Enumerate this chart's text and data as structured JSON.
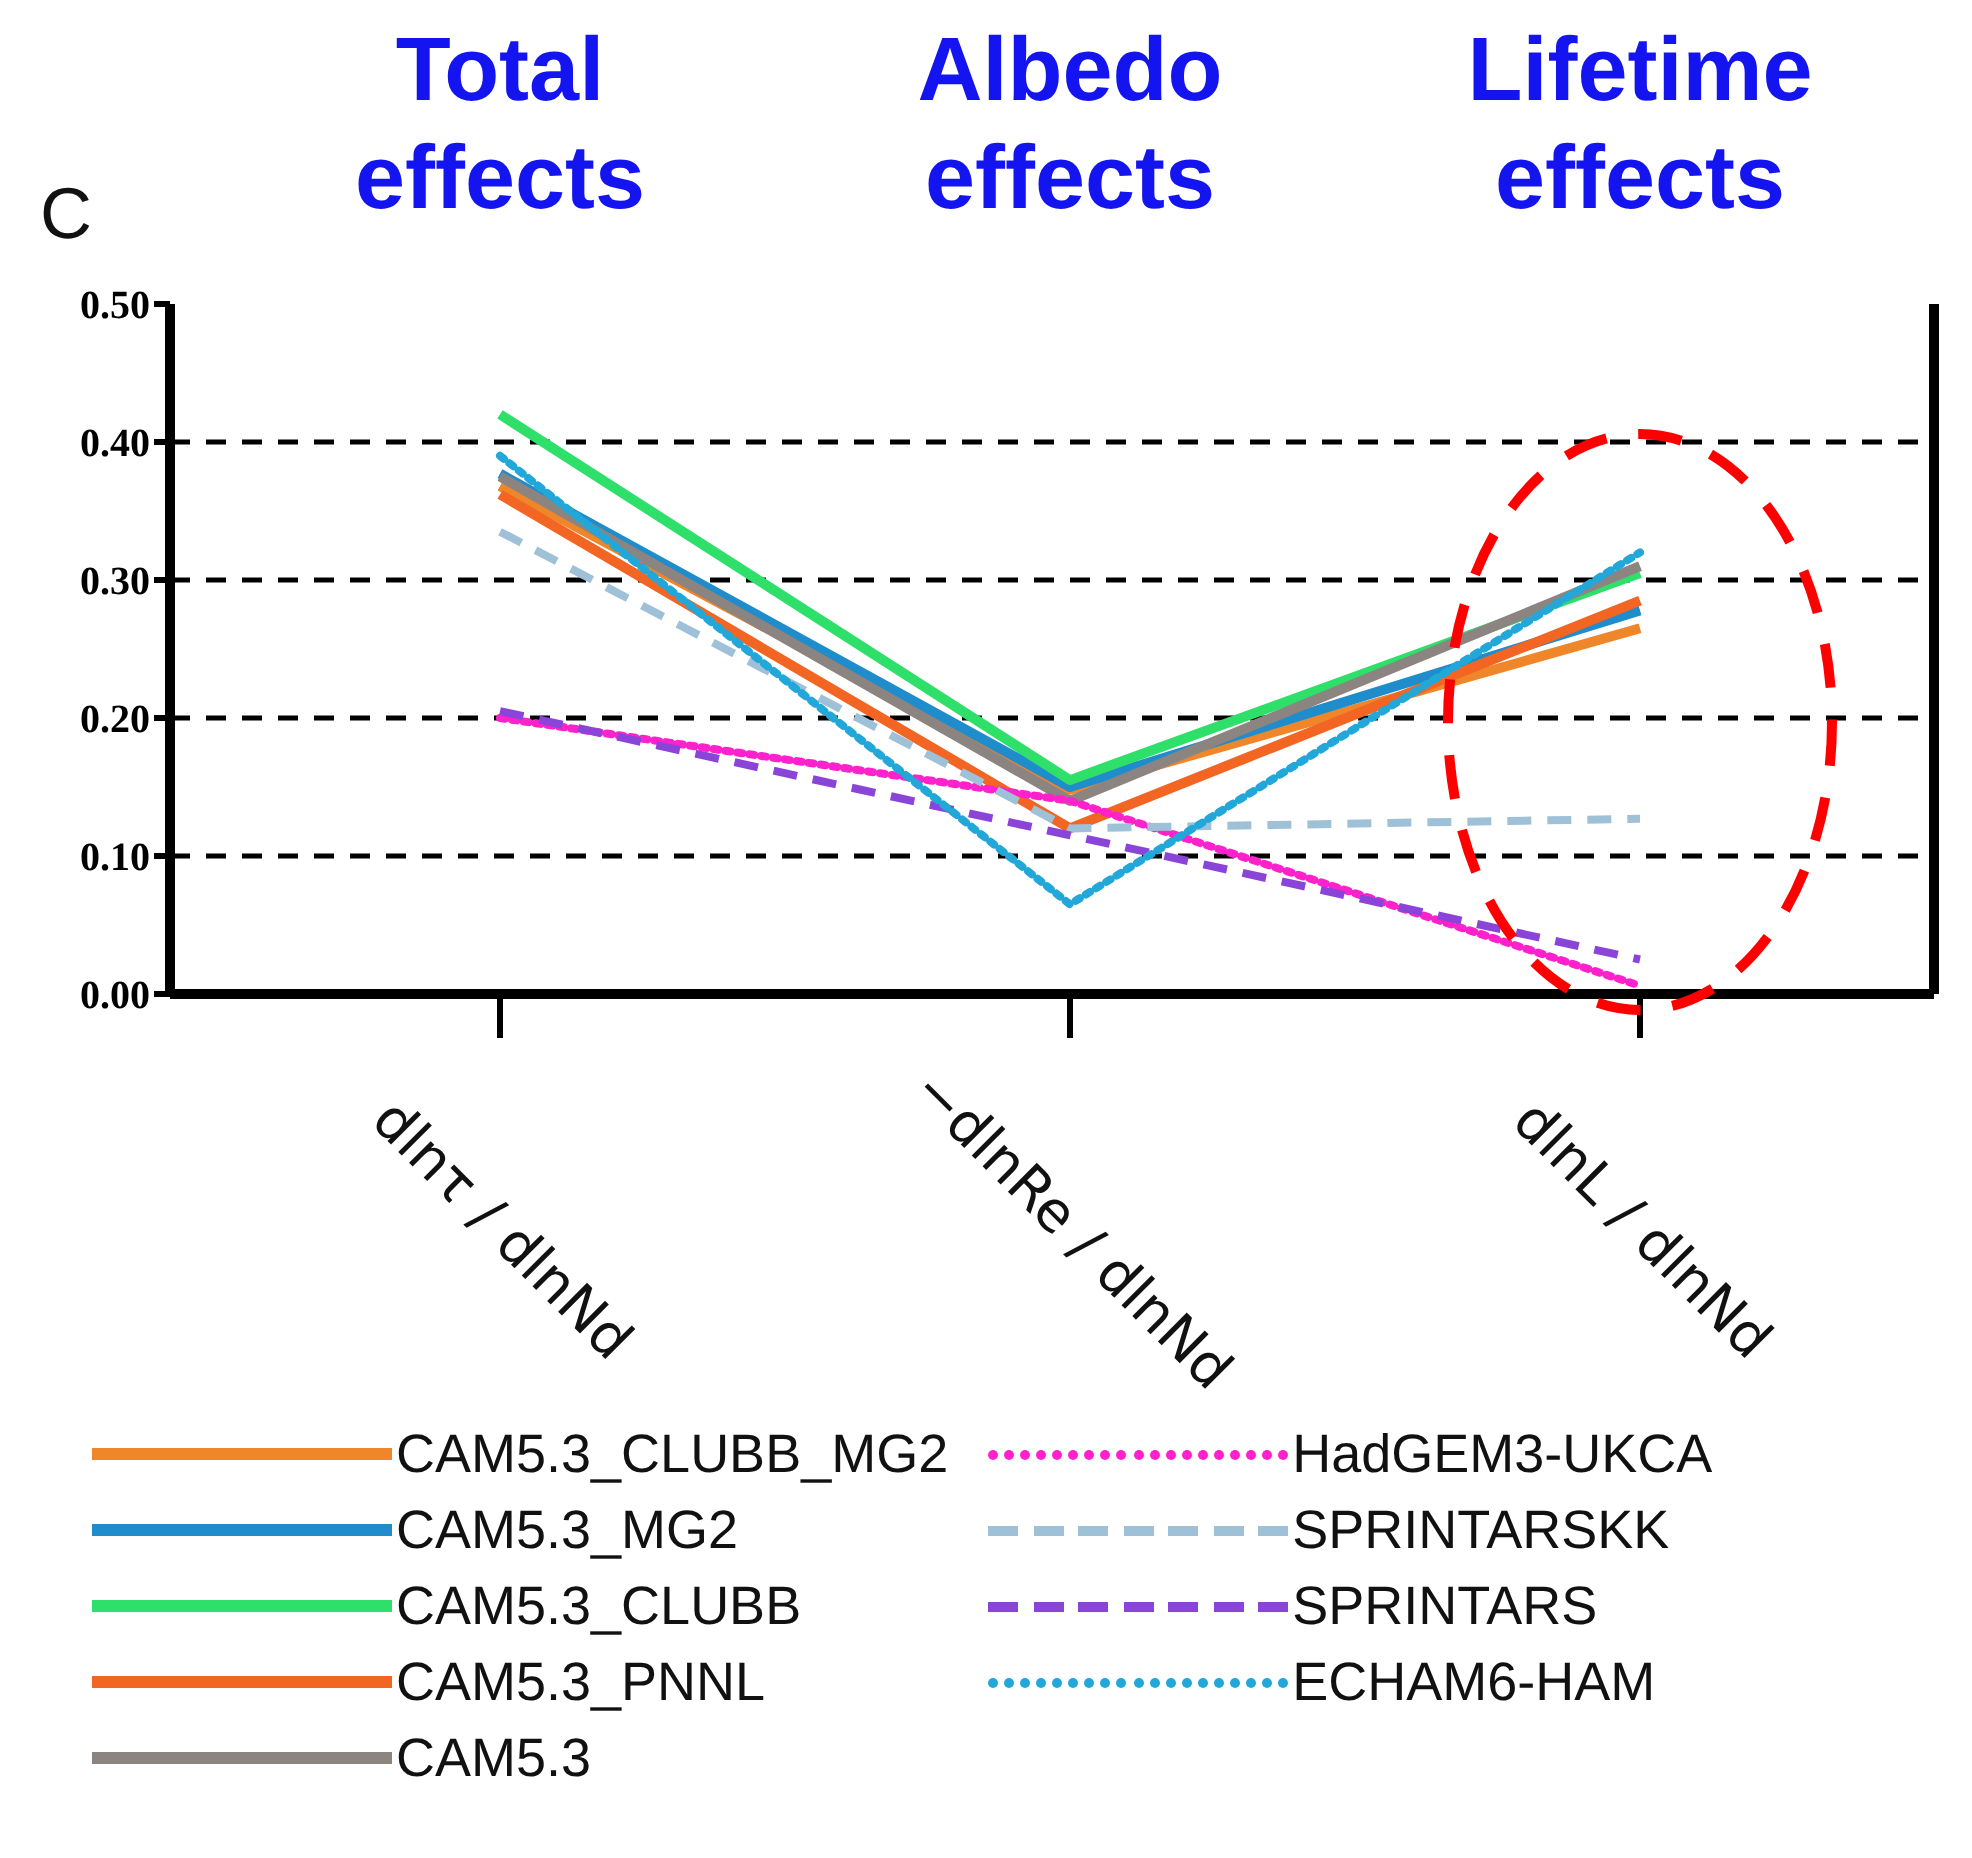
{
  "chart_data": {
    "type": "line",
    "title": "C",
    "annotations": [
      "Total effects",
      "Albedo effects",
      "Lifetime effects"
    ],
    "categories": [
      "dlnτ / dlnNd",
      "−dlnRe / dlnNd",
      "dlnL / dlnNd"
    ],
    "series": [
      {
        "name": "CAM5.3_CLUBB_MG2",
        "color": "#f0862a",
        "line_style": "solid",
        "values": [
          0.368,
          0.148,
          0.265
        ]
      },
      {
        "name": "CAM5.3_MG2",
        "color": "#1f8ccc",
        "line_style": "solid",
        "values": [
          0.377,
          0.15,
          0.278
        ]
      },
      {
        "name": "CAM5.3_CLUBB",
        "color": "#2ee06a",
        "line_style": "solid",
        "values": [
          0.42,
          0.155,
          0.305
        ]
      },
      {
        "name": "CAM5.3_PNNL",
        "color": "#f26522",
        "line_style": "solid",
        "values": [
          0.362,
          0.12,
          0.285
        ]
      },
      {
        "name": "CAM5.3",
        "color": "#8c8480",
        "line_style": "solid",
        "values": [
          0.375,
          0.14,
          0.31
        ]
      },
      {
        "name": "HadGEM3-UKCA",
        "color": "#ff22cc",
        "line_style": "dotted",
        "values": [
          0.2,
          0.14,
          0.006
        ]
      },
      {
        "name": "SPRINTARSKK",
        "color": "#9fc1d8",
        "line_style": "dashed",
        "values": [
          0.335,
          0.12,
          0.127
        ]
      },
      {
        "name": "SPRINTARS",
        "color": "#8a44d8",
        "line_style": "dashed",
        "values": [
          0.205,
          0.115,
          0.025
        ]
      },
      {
        "name": "ECHAM6-HAM",
        "color": "#22a8d8",
        "line_style": "dotted",
        "values": [
          0.39,
          0.065,
          0.32
        ]
      }
    ],
    "ylim": [
      0,
      0.5
    ],
    "yticks": [
      {
        "value": 0,
        "label": "0.00"
      },
      {
        "value": 0.1,
        "label": "0.10"
      },
      {
        "value": 0.2,
        "label": "0.20"
      },
      {
        "value": 0.3,
        "label": "0.30"
      },
      {
        "value": 0.4,
        "label": "0.40"
      },
      {
        "value": 0.5,
        "label": "0.50"
      }
    ],
    "grid": "y",
    "legend": "bottom",
    "marker": "none"
  }
}
